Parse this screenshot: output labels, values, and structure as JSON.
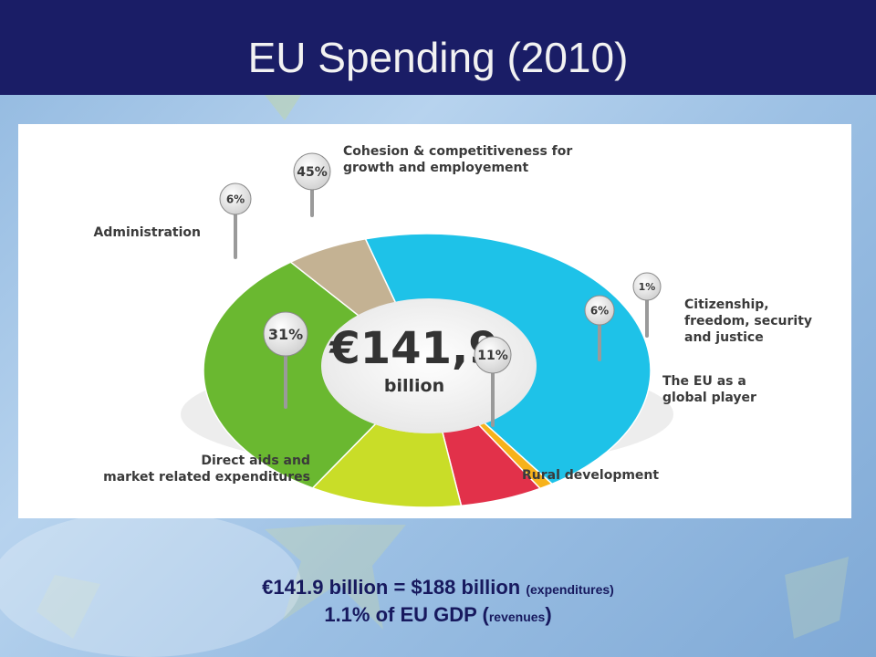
{
  "slide": {
    "title": "EU Spending (2010)"
  },
  "chart_data": {
    "type": "pie",
    "style": "donut",
    "total": {
      "amount": "€141,9",
      "unit": "billion"
    },
    "slices": [
      {
        "label_lines": [
          "Cohesion & competitiveness for",
          "growth and employement"
        ],
        "value": 45,
        "pct_label": "45%",
        "color": "#1ec2e8"
      },
      {
        "label_lines": [
          "Citizenship,",
          "freedom, security",
          "and justice"
        ],
        "value": 1,
        "pct_label": "1%",
        "color": "#f7b21a"
      },
      {
        "label_lines": [
          "The EU as a",
          "global player"
        ],
        "value": 6,
        "pct_label": "6%",
        "color": "#e2314a"
      },
      {
        "label_lines": [
          "Rural development"
        ],
        "value": 11,
        "pct_label": "11%",
        "color": "#c9dd28"
      },
      {
        "label_lines": [
          "Direct aids and",
          "market related expenditures"
        ],
        "value": 31,
        "pct_label": "31%",
        "color": "#6ab830"
      },
      {
        "label_lines": [
          "Administration"
        ],
        "value": 6,
        "pct_label": "6%",
        "color": "#c4b293"
      }
    ]
  },
  "footnote": {
    "line1_main": "€141.9 billion = $188 billion",
    "line1_small": "(expenditures)",
    "line2_main": "1.1% of EU GDP (",
    "line2_small": "revenues",
    "line2_close": ")"
  }
}
